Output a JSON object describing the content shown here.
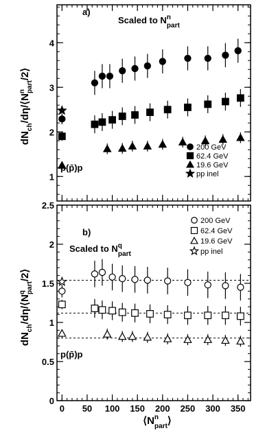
{
  "chart_data": [
    {
      "type": "scatter",
      "panel_label": "a)",
      "title_main": "Scaled to N",
      "title_sup": "n",
      "title_sub": "part",
      "ylabel": "dN_ch/dη/⟨N^n_part/2⟩",
      "ylabel_main": "dN",
      "ylabel_ch": "ch",
      "ylabel_mid": "/dη/⟨N",
      "ylabel_sup": "n",
      "ylabel_sub": "part",
      "ylabel_end": "/2⟩",
      "xlabel": "",
      "xlim": [
        -10,
        375
      ],
      "ylim": [
        0.45,
        4.85
      ],
      "y_ticks": [
        1,
        2,
        3,
        4
      ],
      "x_ticks": [
        0,
        50,
        100,
        150,
        200,
        250,
        300,
        350
      ],
      "pp_label": "p(p̄)p",
      "legend_position": "bottom-right",
      "series": [
        {
          "name": "200 GeV",
          "marker": "circle-filled",
          "x": [
            0,
            65,
            80,
            95,
            120,
            145,
            170,
            200,
            250,
            290,
            325,
            350
          ],
          "y": [
            2.29,
            3.1,
            3.25,
            3.25,
            3.37,
            3.42,
            3.48,
            3.58,
            3.65,
            3.65,
            3.72,
            3.82
          ],
          "yerr": [
            0.12,
            0.27,
            0.27,
            0.27,
            0.27,
            0.27,
            0.27,
            0.27,
            0.27,
            0.27,
            0.27,
            0.27
          ]
        },
        {
          "name": "62.4 GeV",
          "marker": "square-filled",
          "x": [
            0,
            65,
            80,
            100,
            120,
            145,
            175,
            210,
            250,
            290,
            325,
            355
          ],
          "y": [
            1.9,
            2.17,
            2.22,
            2.27,
            2.35,
            2.38,
            2.44,
            2.5,
            2.55,
            2.62,
            2.68,
            2.76
          ],
          "yerr": [
            0.1,
            0.2,
            0.2,
            0.2,
            0.2,
            0.2,
            0.2,
            0.2,
            0.2,
            0.2,
            0.2,
            0.2
          ]
        },
        {
          "name": "19.6 GeV",
          "marker": "triangle-filled",
          "x": [
            0,
            90,
            120,
            140,
            170,
            200,
            240,
            285,
            320,
            355
          ],
          "y": [
            1.25,
            1.62,
            1.63,
            1.68,
            1.68,
            1.72,
            1.77,
            1.8,
            1.83,
            1.87
          ],
          "yerr": [
            0.08,
            0.12,
            0.12,
            0.12,
            0.12,
            0.12,
            0.12,
            0.12,
            0.12,
            0.12
          ]
        },
        {
          "name": "pp  inel",
          "marker": "star-filled",
          "x": [
            0
          ],
          "y": [
            2.48
          ],
          "yerr": [
            0
          ]
        }
      ]
    },
    {
      "type": "scatter",
      "panel_label": "b)",
      "title_main": "Scaled to N",
      "title_sup": "q",
      "title_sub": "part",
      "ylabel": "dN_ch/dη/⟨N^q_part/2⟩",
      "ylabel_main": "dN",
      "ylabel_ch": "ch",
      "ylabel_mid": "/dη/⟨N",
      "ylabel_sup": "q",
      "ylabel_sub": "part",
      "ylabel_end": "/2⟩",
      "xlabel": "⟨N^n_part⟩",
      "xlabel_main": "⟨N",
      "xlabel_sup": "n",
      "xlabel_sub": "part",
      "xlabel_end": "⟩",
      "xlim": [
        -10,
        375
      ],
      "ylim": [
        0,
        2.5
      ],
      "y_ticks": [
        0,
        0.5,
        1,
        1.5,
        2,
        2.5
      ],
      "y_tick_labels": [
        "0",
        "0.5",
        "1",
        "1.5",
        "2",
        "2.5"
      ],
      "x_ticks": [
        0,
        50,
        100,
        150,
        200,
        250,
        300,
        350
      ],
      "x_tick_labels": [
        "0",
        "50",
        "100",
        "150",
        "200",
        "250",
        "300",
        "350"
      ],
      "reference_lines": [
        1.54,
        1.12,
        0.8
      ],
      "pp_label": "p(p̄)p",
      "legend_position": "top-right",
      "series": [
        {
          "name": "200 GeV",
          "marker": "circle-open",
          "x": [
            0,
            65,
            80,
            100,
            120,
            145,
            170,
            210,
            250,
            290,
            325,
            355
          ],
          "y": [
            1.4,
            1.62,
            1.64,
            1.58,
            1.56,
            1.55,
            1.54,
            1.53,
            1.51,
            1.48,
            1.47,
            1.45
          ],
          "yerr": [
            0.08,
            0.17,
            0.17,
            0.17,
            0.17,
            0.17,
            0.17,
            0.17,
            0.17,
            0.17,
            0.17,
            0.17
          ]
        },
        {
          "name": "62.4 GeV",
          "marker": "square-open",
          "x": [
            0,
            65,
            80,
            100,
            120,
            145,
            175,
            210,
            250,
            290,
            325,
            355
          ],
          "y": [
            1.23,
            1.18,
            1.16,
            1.15,
            1.13,
            1.12,
            1.11,
            1.1,
            1.09,
            1.09,
            1.09,
            1.08
          ],
          "yerr": [
            0.06,
            0.12,
            0.12,
            0.12,
            0.12,
            0.12,
            0.12,
            0.12,
            0.12,
            0.12,
            0.12,
            0.12
          ]
        },
        {
          "name": "19.6 GeV",
          "marker": "triangle-open",
          "x": [
            0,
            90,
            120,
            140,
            170,
            210,
            250,
            290,
            325,
            355
          ],
          "y": [
            0.86,
            0.85,
            0.82,
            0.82,
            0.81,
            0.79,
            0.78,
            0.78,
            0.77,
            0.76
          ],
          "yerr": [
            0.05,
            0.07,
            0.07,
            0.07,
            0.07,
            0.07,
            0.07,
            0.07,
            0.07,
            0.07
          ]
        },
        {
          "name": "pp  inel",
          "marker": "star-open",
          "x": [
            0
          ],
          "y": [
            1.52
          ],
          "yerr": [
            0
          ]
        }
      ]
    }
  ]
}
